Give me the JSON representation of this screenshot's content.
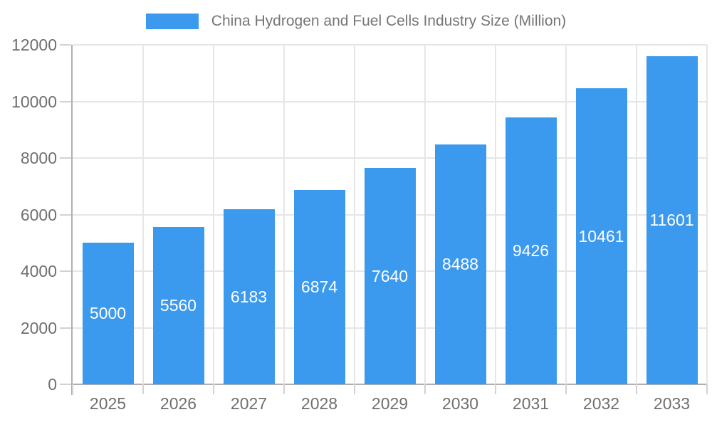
{
  "legend": {
    "label": "China Hydrogen and Fuel Cells Industry Size (Million)"
  },
  "chart_data": {
    "type": "bar",
    "title": "China Hydrogen and Fuel Cells Industry Size (Million)",
    "categories": [
      "2025",
      "2026",
      "2027",
      "2028",
      "2029",
      "2030",
      "2031",
      "2032",
      "2033"
    ],
    "values": [
      5000,
      5560,
      6183,
      6874,
      7640,
      8488,
      9426,
      10461,
      11601
    ],
    "xlabel": "",
    "ylabel": "",
    "ylim": [
      0,
      12000
    ],
    "yticks": [
      0,
      2000,
      4000,
      6000,
      8000,
      10000,
      12000
    ],
    "grid": true,
    "legend_position": "top",
    "bar_color": "#3b99ee",
    "value_label_color": "#ffffff",
    "gridline_color": "#e6e6e6",
    "tick_color": "#d2d2d2",
    "axis_color": "#b0b0b0",
    "tick_label_color": "#6f6f6f",
    "legend_text_color": "#757575"
  }
}
